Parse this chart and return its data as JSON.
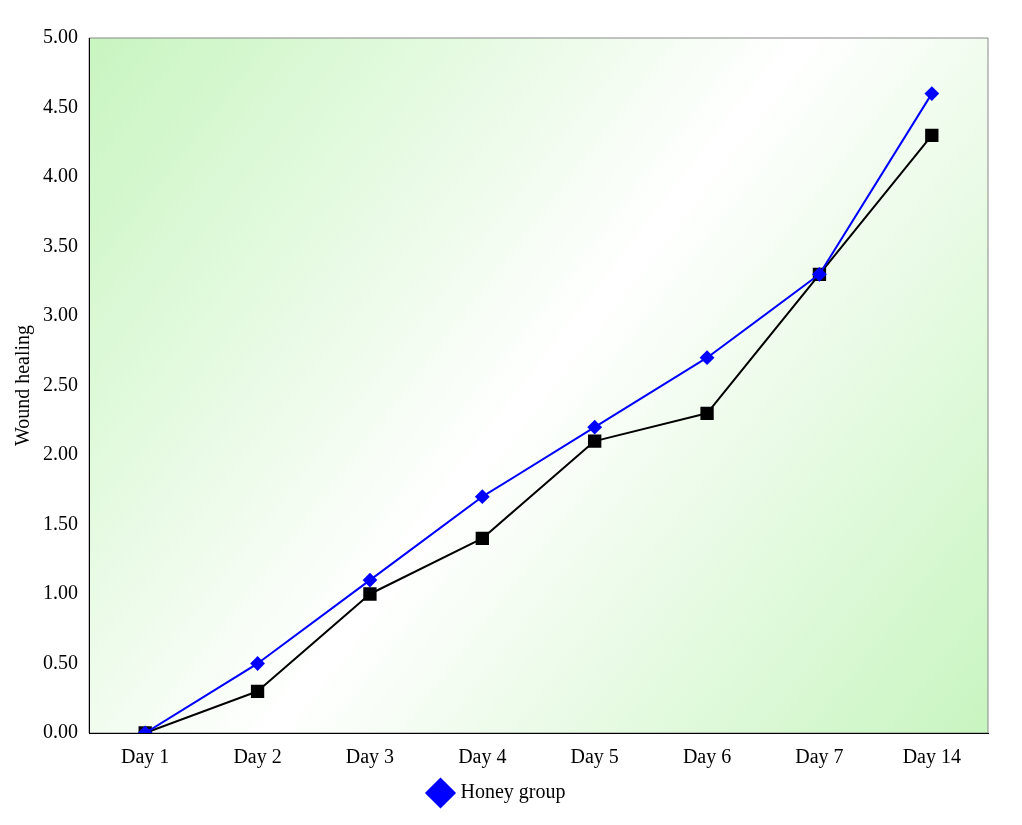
{
  "chart_data": {
    "type": "line",
    "ylabel": "Wound healing",
    "categories": [
      "Day 1",
      "Day 2",
      "Day 3",
      "Day 4",
      "Day 5",
      "Day 6",
      "Day 7",
      "Day 14"
    ],
    "series": [
      {
        "name": "Honey group",
        "color": "#0000ff",
        "marker": "diamond",
        "values": [
          0,
          0.5,
          1.1,
          1.7,
          2.2,
          2.7,
          3.3,
          4.6
        ]
      },
      {
        "color": "#000000",
        "marker": "square",
        "values": [
          0,
          0.3,
          1.0,
          1.4,
          2.1,
          2.3,
          3.3,
          4.3
        ]
      }
    ],
    "ylim": [
      0,
      5
    ],
    "yticks": [
      {
        "value": 0,
        "label": "0.00"
      },
      {
        "value": 0.5,
        "label": "0.50"
      },
      {
        "value": 1,
        "label": "1.00"
      },
      {
        "value": 1.5,
        "label": "1.50"
      },
      {
        "value": 2,
        "label": "2.00"
      },
      {
        "value": 2.5,
        "label": "2.50"
      },
      {
        "value": 3,
        "label": "3.00"
      },
      {
        "value": 3.5,
        "label": "3.50"
      },
      {
        "value": 4,
        "label": "4.00"
      },
      {
        "value": 4.5,
        "label": "4.50"
      },
      {
        "value": 5,
        "label": "5.00"
      }
    ],
    "grid": false,
    "legend": "bottom"
  }
}
